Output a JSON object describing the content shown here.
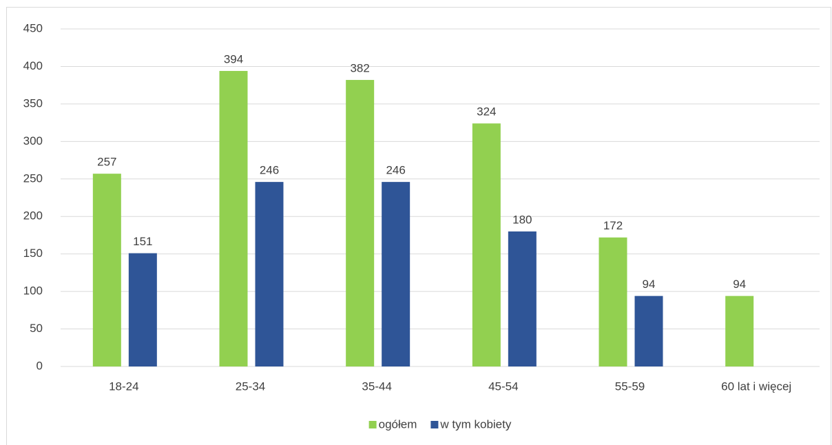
{
  "chart_data": {
    "type": "bar",
    "categories": [
      "18-24",
      "25-34",
      "35-44",
      "45-54",
      "55-59",
      "60 lat i więcej"
    ],
    "series": [
      {
        "name": "ogółem",
        "color": "#92d050",
        "values": [
          257,
          394,
          382,
          324,
          172,
          94
        ]
      },
      {
        "name": "w tym kobiety",
        "color": "#2f5597",
        "values": [
          151,
          246,
          246,
          180,
          94,
          null
        ]
      }
    ],
    "ylim": [
      0,
      450
    ],
    "yticks": [
      0,
      50,
      100,
      150,
      200,
      250,
      300,
      350,
      400,
      450
    ],
    "grid": true,
    "legend": "bottom"
  }
}
